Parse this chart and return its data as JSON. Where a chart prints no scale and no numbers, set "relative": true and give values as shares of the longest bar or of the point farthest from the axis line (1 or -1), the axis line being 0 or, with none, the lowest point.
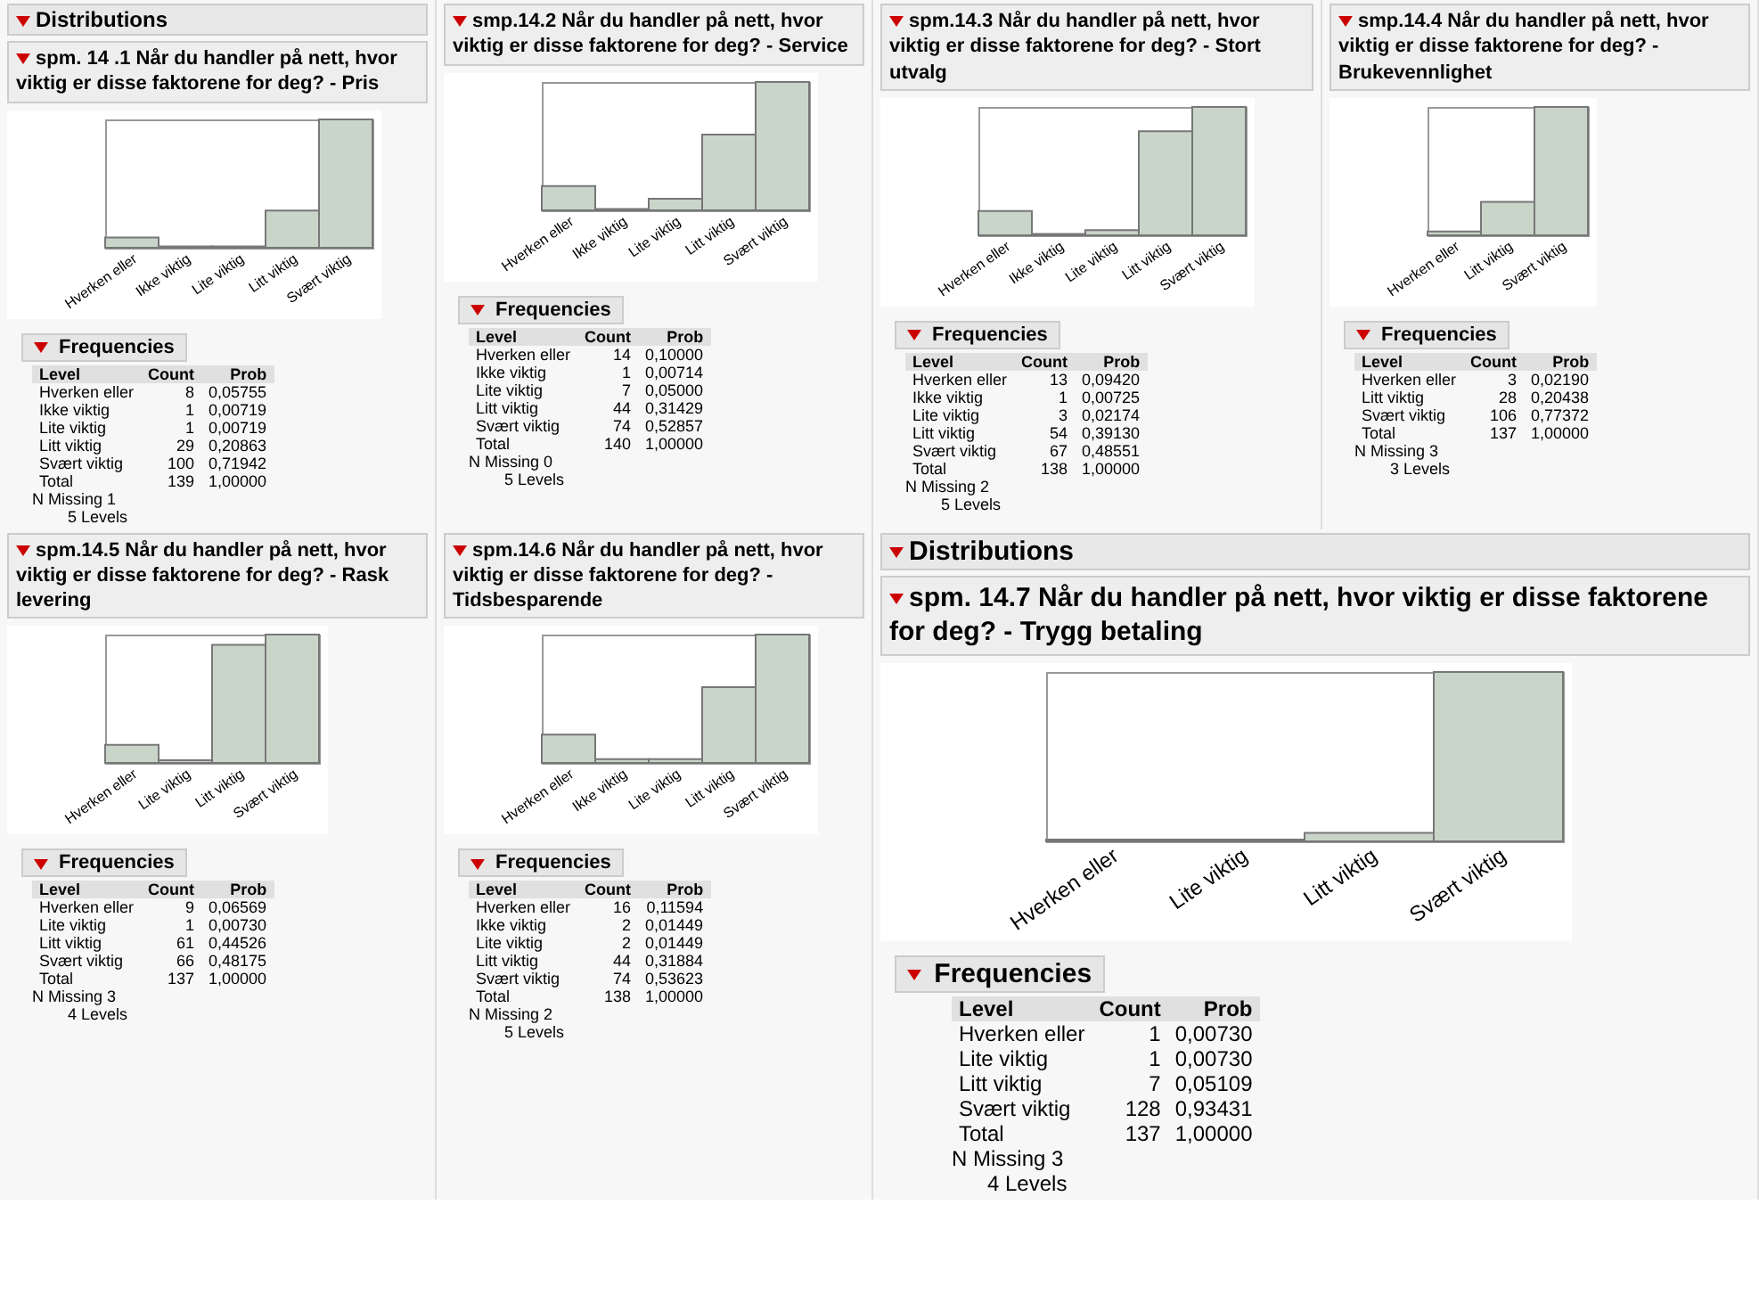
{
  "chart_data": [
    {
      "type": "bar",
      "title": "spm. 14 .1 Når du handler på nett, hvor viktig er disse faktorene for deg? - Pris",
      "categories": [
        "Hverken eller",
        "Ikke viktig",
        "Lite viktig",
        "Litt viktig",
        "Svært viktig"
      ],
      "values": [
        0.08,
        0.01,
        0.01,
        0.29,
        1
      ],
      "relative": true,
      "color": "#c9d5c9",
      "annotations": [
        "Frequencies",
        "Level",
        "Count",
        "Prob",
        "Hverken eller",
        "8",
        "0,05755",
        "Ikke viktig",
        "1",
        "0,00719",
        "Lite viktig",
        "1",
        "0,00719",
        "Litt viktig",
        "29",
        "0,20863",
        "Svært viktig",
        "100",
        "0,71942",
        "Total",
        "139",
        "1,00000",
        "N Missing 1",
        "5 Levels",
        "Distributions"
      ]
    },
    {
      "type": "bar",
      "title": "smp.14.2 Når du handler på nett, hvor viktig er disse faktorene for deg? - Service",
      "categories": [
        "Hverken eller",
        "Ikke viktig",
        "Lite viktig",
        "Litt viktig",
        "Svært viktig"
      ],
      "values": [
        0.19,
        0.01,
        0.09,
        0.59,
        1
      ],
      "relative": true,
      "color": "#c9d5c9",
      "annotations": [
        "Frequencies",
        "Level",
        "Count",
        "Prob",
        "Hverken eller",
        "14",
        "0,10000",
        "Ikke viktig",
        "1",
        "0,00714",
        "Lite viktig",
        "7",
        "0,05000",
        "Litt viktig",
        "44",
        "0,31429",
        "Svært viktig",
        "74",
        "0,52857",
        "Total",
        "140",
        "1,00000",
        "N Missing 0",
        "5 Levels"
      ]
    },
    {
      "type": "bar",
      "title": "spm.14.3 Når du handler på nett, hvor viktig er disse faktorene for deg? - Stort utvalg",
      "categories": [
        "Hverken eller",
        "Ikke viktig",
        "Lite viktig",
        "Litt viktig",
        "Svært viktig"
      ],
      "values": [
        0.19,
        0.01,
        0.04,
        0.81,
        1
      ],
      "relative": true,
      "color": "#c9d5c9",
      "annotations": [
        "Frequencies",
        "Level",
        "Count",
        "Prob",
        "Hverken eller",
        "13",
        "0,09420",
        "Ikke viktig",
        "1",
        "0,00725",
        "Lite viktig",
        "3",
        "0,02174",
        "Litt viktig",
        "54",
        "0,39130",
        "Svært viktig",
        "67",
        "0,48551",
        "Total",
        "138",
        "1,00000",
        "N Missing 2",
        "5 Levels"
      ]
    },
    {
      "type": "bar",
      "title": "smp.14.4 Når du handler på nett, hvor viktig er disse faktorene for deg? - Brukevennlighet",
      "categories": [
        "Hverken eller",
        "Litt viktig",
        "Svært viktig"
      ],
      "values": [
        0.03,
        0.26,
        1
      ],
      "relative": true,
      "color": "#c9d5c9",
      "annotations": [
        "Frequencies",
        "Level",
        "Count",
        "Prob",
        "Hverken eller",
        "3",
        "0,02190",
        "Litt viktig",
        "28",
        "0,20438",
        "Svært viktig",
        "106",
        "0,77372",
        "Total",
        "137",
        "1,00000",
        "N Missing 3",
        "3 Levels"
      ]
    },
    {
      "type": "bar",
      "title": "spm.14.5 Når du handler på nett, hvor viktig er disse faktorene for deg? - Rask levering",
      "categories": [
        "Hverken eller",
        "Lite viktig",
        "Litt viktig",
        "Svært viktig"
      ],
      "values": [
        0.14,
        0.02,
        0.92,
        1
      ],
      "relative": true,
      "color": "#c9d5c9",
      "annotations": [
        "Frequencies",
        "Level",
        "Count",
        "Prob",
        "Hverken eller",
        "9",
        "0,06569",
        "Lite viktig",
        "1",
        "0,00730",
        "Litt viktig",
        "61",
        "0,44526",
        "Svært viktig",
        "66",
        "0,48175",
        "Total",
        "137",
        "1,00000",
        "N Missing 3",
        "4 Levels"
      ]
    },
    {
      "type": "bar",
      "title": "spm.14.6 Når du handler på nett, hvor viktig er disse faktorene for deg? - Tidsbesparende",
      "categories": [
        "Hverken eller",
        "Ikke viktig",
        "Lite viktig",
        "Litt viktig",
        "Svært viktig"
      ],
      "values": [
        0.22,
        0.03,
        0.03,
        0.59,
        1
      ],
      "relative": true,
      "color": "#c9d5c9",
      "annotations": [
        "Frequencies",
        "Level",
        "Count",
        "Prob",
        "Hverken eller",
        "16",
        "0,11594",
        "Ikke viktig",
        "2",
        "0,01449",
        "Lite viktig",
        "2",
        "0,01449",
        "Litt viktig",
        "44",
        "0,31884",
        "Svært viktig",
        "74",
        "0,53623",
        "Total",
        "138",
        "1,00000",
        "N Missing 2",
        "5 Levels"
      ]
    },
    {
      "type": "bar",
      "title": "spm. 14.7 Når du handler på nett, hvor viktig er disse faktorene for deg? - Trygg betaling",
      "categories": [
        "Hverken eller",
        "Lite viktig",
        "Litt viktig",
        "Svært viktig"
      ],
      "values": [
        0.01,
        0.01,
        0.05,
        1
      ],
      "relative": true,
      "color": "#c9d5c9",
      "annotations": [
        "Frequencies",
        "Level",
        "Count",
        "Prob",
        "Hverken eller",
        "1",
        "0,00730",
        "Lite viktig",
        "1",
        "0,00730",
        "Litt viktig",
        "7",
        "0,05109",
        "Svært viktig",
        "128",
        "0,93431",
        "Total",
        "137",
        "1,00000",
        "N Missing 3",
        "4 Levels",
        "Distributions"
      ]
    }
  ]
}
